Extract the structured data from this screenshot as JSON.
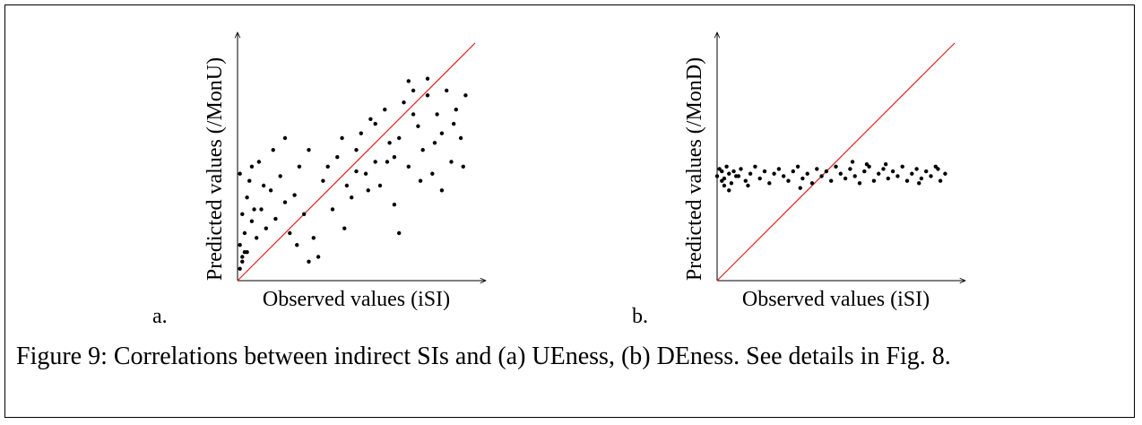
{
  "chart_data": [
    {
      "type": "scatter",
      "panel": "a.",
      "xlabel": "Observed values (iSI)",
      "ylabel": "Predicted values (/MonU)",
      "color": "#000000",
      "xlim": [
        0,
        1
      ],
      "ylim": [
        0,
        1
      ],
      "x": [
        0.01,
        0.02,
        0.01,
        0.03,
        0.02,
        0.04,
        0.01,
        0.05,
        0.03,
        0.06,
        0.08,
        0.1,
        0.12,
        0.09,
        0.14,
        0.16,
        0.18,
        0.2,
        0.22,
        0.24,
        0.26,
        0.28,
        0.3,
        0.32,
        0.34,
        0.36,
        0.38,
        0.4,
        0.42,
        0.44,
        0.46,
        0.48,
        0.5,
        0.52,
        0.54,
        0.56,
        0.58,
        0.6,
        0.62,
        0.64,
        0.66,
        0.68,
        0.7,
        0.72,
        0.74,
        0.76,
        0.78,
        0.8,
        0.82,
        0.84,
        0.86,
        0.88,
        0.9,
        0.92,
        0.94,
        0.96,
        0.3,
        0.25,
        0.15,
        0.06,
        0.68,
        0.86,
        0.72,
        0.8,
        0.2,
        0.45,
        0.02,
        0.04,
        0.07,
        0.11,
        0.55,
        0.63,
        0.77,
        0.83,
        0.91,
        0.95,
        0.5,
        0.58,
        0.66,
        0.74
      ],
      "y": [
        0.05,
        0.1,
        0.15,
        0.2,
        0.28,
        0.35,
        0.45,
        0.42,
        0.12,
        0.25,
        0.18,
        0.3,
        0.22,
        0.5,
        0.38,
        0.26,
        0.44,
        0.33,
        0.2,
        0.36,
        0.48,
        0.28,
        0.55,
        0.18,
        0.1,
        0.42,
        0.48,
        0.3,
        0.52,
        0.6,
        0.4,
        0.35,
        0.55,
        0.62,
        0.45,
        0.68,
        0.5,
        0.4,
        0.72,
        0.58,
        0.32,
        0.6,
        0.75,
        0.48,
        0.8,
        0.65,
        0.55,
        0.78,
        0.45,
        0.7,
        0.62,
        0.8,
        0.5,
        0.72,
        0.6,
        0.78,
        0.08,
        0.15,
        0.55,
        0.48,
        0.2,
        0.38,
        0.84,
        0.85,
        0.6,
        0.22,
        0.08,
        0.12,
        0.3,
        0.4,
        0.38,
        0.5,
        0.42,
        0.58,
        0.66,
        0.48,
        0.46,
        0.66,
        0.52,
        0.7
      ]
    },
    {
      "type": "scatter",
      "panel": "b.",
      "xlabel": "Observed values (iSI)",
      "ylabel": "Predicted values (/MonD)",
      "color": "#000000",
      "xlim": [
        0,
        1
      ],
      "ylim": [
        0,
        1
      ],
      "x": [
        0.0,
        0.01,
        0.02,
        0.02,
        0.03,
        0.04,
        0.05,
        0.06,
        0.07,
        0.08,
        0.1,
        0.12,
        0.14,
        0.16,
        0.18,
        0.2,
        0.22,
        0.24,
        0.26,
        0.28,
        0.3,
        0.32,
        0.34,
        0.36,
        0.38,
        0.4,
        0.42,
        0.44,
        0.46,
        0.48,
        0.5,
        0.52,
        0.54,
        0.56,
        0.58,
        0.6,
        0.62,
        0.64,
        0.66,
        0.68,
        0.7,
        0.72,
        0.74,
        0.76,
        0.78,
        0.8,
        0.82,
        0.84,
        0.86,
        0.88,
        0.9,
        0.92,
        0.94,
        0.96,
        0.03,
        0.05,
        0.09,
        0.13,
        0.35,
        0.57,
        0.71,
        0.85,
        0.93,
        0.63
      ],
      "y": [
        0.44,
        0.47,
        0.42,
        0.46,
        0.43,
        0.48,
        0.45,
        0.41,
        0.46,
        0.44,
        0.47,
        0.42,
        0.45,
        0.48,
        0.43,
        0.46,
        0.41,
        0.45,
        0.47,
        0.44,
        0.42,
        0.46,
        0.48,
        0.43,
        0.45,
        0.41,
        0.47,
        0.44,
        0.46,
        0.42,
        0.48,
        0.45,
        0.43,
        0.47,
        0.44,
        0.41,
        0.46,
        0.48,
        0.42,
        0.45,
        0.47,
        0.43,
        0.46,
        0.44,
        0.48,
        0.42,
        0.45,
        0.47,
        0.43,
        0.46,
        0.44,
        0.48,
        0.42,
        0.45,
        0.4,
        0.38,
        0.44,
        0.4,
        0.39,
        0.5,
        0.49,
        0.41,
        0.47,
        0.49
      ]
    }
  ],
  "caption": "Figure 9: Correlations between indirect SIs and (a) UEness, (b) DEness. See details in Fig. 8."
}
